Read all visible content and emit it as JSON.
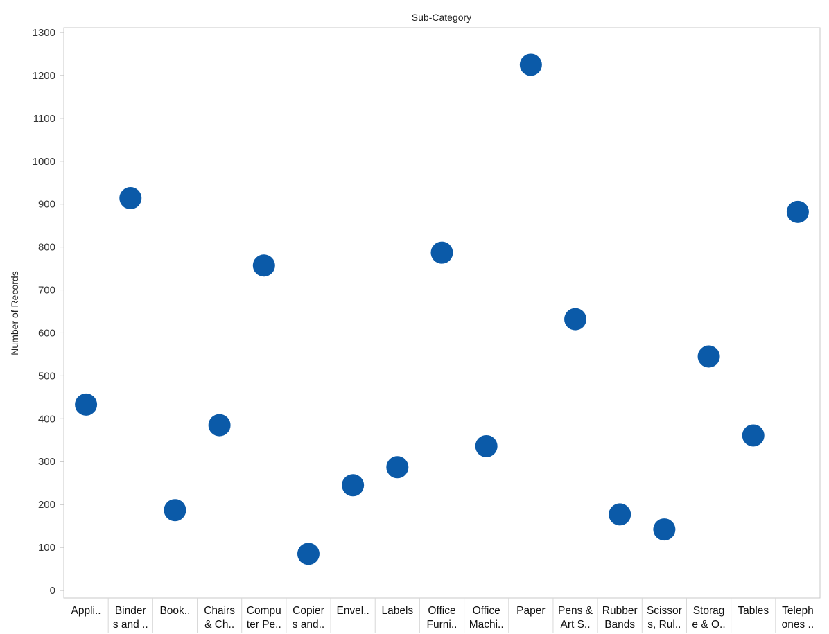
{
  "chart_data": {
    "type": "scatter",
    "title": "Sub-Category",
    "xlabel": "",
    "ylabel": "Number of Records",
    "ylim": [
      0,
      1300
    ],
    "yticks": [
      "0",
      "100",
      "200",
      "300",
      "400",
      "500",
      "600",
      "700",
      "800",
      "900",
      "1000",
      "1100",
      "1200",
      "1300"
    ],
    "grid": false,
    "categories": [
      [
        "Appli.."
      ],
      [
        "Binder",
        "s and .."
      ],
      [
        "Book.."
      ],
      [
        "Chairs",
        "& Ch.."
      ],
      [
        "Compu",
        "ter Pe.."
      ],
      [
        "Copier",
        "s and.."
      ],
      [
        "Envel.."
      ],
      [
        "Labels"
      ],
      [
        "Office",
        "Furni.."
      ],
      [
        "Office",
        "Machi.."
      ],
      [
        "Paper"
      ],
      [
        "Pens &",
        "Art S.."
      ],
      [
        "Rubber",
        "Bands"
      ],
      [
        "Scissor",
        "s, Rul.."
      ],
      [
        "Storag",
        "e & O.."
      ],
      [
        "Tables"
      ],
      [
        "Teleph",
        "ones .."
      ]
    ],
    "values": [
      433,
      914,
      187,
      385,
      757,
      85,
      245,
      287,
      787,
      336,
      1225,
      632,
      177,
      142,
      545,
      361,
      882
    ],
    "marker_color": "#0b5aa8"
  }
}
